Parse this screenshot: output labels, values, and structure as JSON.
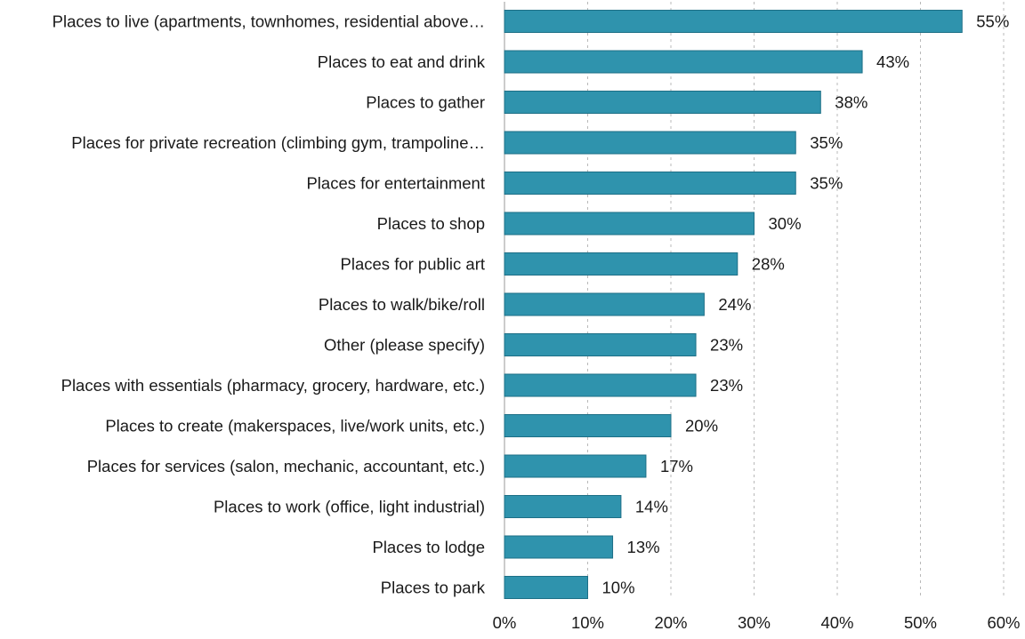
{
  "chart_data": {
    "type": "bar",
    "orientation": "horizontal",
    "title": "",
    "xlabel": "",
    "ylabel": "",
    "categories": [
      "Places to live (apartments, townhomes, residential above…",
      "Places to eat and drink",
      "Places to gather",
      "Places for private recreation (climbing gym, trampoline…",
      "Places for entertainment",
      "Places to shop",
      "Places for public art",
      "Places to walk/bike/roll",
      "Other (please specify)",
      "Places with essentials (pharmacy, grocery, hardware, etc.)",
      "Places to create (makerspaces, live/work units, etc.)",
      "Places for services (salon, mechanic, accountant, etc.)",
      "Places to work (office, light industrial)",
      "Places to lodge",
      "Places to park"
    ],
    "values": [
      55,
      43,
      38,
      35,
      35,
      30,
      28,
      24,
      23,
      23,
      20,
      17,
      14,
      13,
      10
    ],
    "value_labels": [
      "55%",
      "43%",
      "38%",
      "35%",
      "35%",
      "30%",
      "28%",
      "24%",
      "23%",
      "23%",
      "20%",
      "17%",
      "14%",
      "13%",
      "10%"
    ],
    "xlim": [
      0,
      60
    ],
    "x_ticks": [
      0,
      10,
      20,
      30,
      40,
      50,
      60
    ],
    "x_tick_labels": [
      "0%",
      "10%",
      "20%",
      "30%",
      "40%",
      "50%",
      "60%"
    ],
    "grid": true,
    "legend": "none",
    "bar_color": "#2f93ad",
    "bar_edge_color": "#1d6f86"
  }
}
